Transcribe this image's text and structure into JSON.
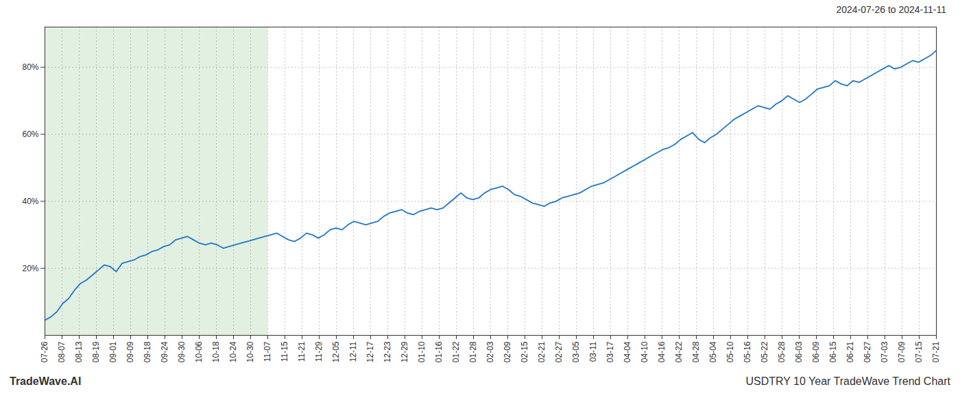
{
  "chart_data": {
    "type": "line",
    "title": "2024-07-26 to 2024-11-11",
    "annotations": [
      "TradeWave.AI",
      "USDTRY 10 Year TradeWave Trend Chart"
    ],
    "color": "#2176c7",
    "grid": true,
    "highlight": {
      "start": 0,
      "end": 13,
      "color": "#d5ead5"
    },
    "xlim": [
      0,
      52
    ],
    "xticks": [
      {
        "value": 0,
        "label": "07-26"
      },
      {
        "value": 1,
        "label": "08-07"
      },
      {
        "value": 2,
        "label": "08-13"
      },
      {
        "value": 3,
        "label": "08-19"
      },
      {
        "value": 4,
        "label": "09-01"
      },
      {
        "value": 5,
        "label": "09-09"
      },
      {
        "value": 6,
        "label": "09-18"
      },
      {
        "value": 7,
        "label": "09-24"
      },
      {
        "value": 8,
        "label": "09-30"
      },
      {
        "value": 9,
        "label": "10-06"
      },
      {
        "value": 10,
        "label": "10-18"
      },
      {
        "value": 11,
        "label": "10-24"
      },
      {
        "value": 12,
        "label": "10-30"
      },
      {
        "value": 13,
        "label": "11-07"
      },
      {
        "value": 14,
        "label": "11-15"
      },
      {
        "value": 15,
        "label": "11-21"
      },
      {
        "value": 16,
        "label": "11-29"
      },
      {
        "value": 17,
        "label": "12-05"
      },
      {
        "value": 18,
        "label": "12-11"
      },
      {
        "value": 19,
        "label": "12-17"
      },
      {
        "value": 20,
        "label": "12-23"
      },
      {
        "value": 21,
        "label": "12-29"
      },
      {
        "value": 22,
        "label": "01-10"
      },
      {
        "value": 23,
        "label": "01-16"
      },
      {
        "value": 24,
        "label": "01-22"
      },
      {
        "value": 25,
        "label": "01-28"
      },
      {
        "value": 26,
        "label": "02-03"
      },
      {
        "value": 27,
        "label": "02-09"
      },
      {
        "value": 28,
        "label": "02-15"
      },
      {
        "value": 29,
        "label": "02-21"
      },
      {
        "value": 30,
        "label": "02-27"
      },
      {
        "value": 31,
        "label": "03-05"
      },
      {
        "value": 32,
        "label": "03-11"
      },
      {
        "value": 33,
        "label": "03-17"
      },
      {
        "value": 34,
        "label": "04-04"
      },
      {
        "value": 35,
        "label": "04-10"
      },
      {
        "value": 36,
        "label": "04-16"
      },
      {
        "value": 37,
        "label": "04-22"
      },
      {
        "value": 38,
        "label": "04-28"
      },
      {
        "value": 39,
        "label": "05-04"
      },
      {
        "value": 40,
        "label": "05-10"
      },
      {
        "value": 41,
        "label": "05-16"
      },
      {
        "value": 42,
        "label": "05-22"
      },
      {
        "value": 43,
        "label": "05-28"
      },
      {
        "value": 44,
        "label": "06-03"
      },
      {
        "value": 45,
        "label": "06-09"
      },
      {
        "value": 46,
        "label": "06-15"
      },
      {
        "value": 47,
        "label": "06-21"
      },
      {
        "value": 48,
        "label": "06-27"
      },
      {
        "value": 49,
        "label": "07-03"
      },
      {
        "value": 50,
        "label": "07-09"
      },
      {
        "value": 51,
        "label": "07-15"
      },
      {
        "value": 52,
        "label": "07-21"
      }
    ],
    "ylim": [
      0,
      92
    ],
    "yticks": [
      {
        "value": 20,
        "label": "20%"
      },
      {
        "value": 40,
        "label": "40%"
      },
      {
        "value": 60,
        "label": "60%"
      },
      {
        "value": 80,
        "label": "80%"
      }
    ],
    "values": [
      4.5,
      5.5,
      7.0,
      9.5,
      11.0,
      13.5,
      15.5,
      16.5,
      18.0,
      19.5,
      21.0,
      20.5,
      19.0,
      21.5,
      22.0,
      22.5,
      23.5,
      24.0,
      25.0,
      25.5,
      26.5,
      27.0,
      28.5,
      29.0,
      29.5,
      28.5,
      27.5,
      27.0,
      27.5,
      27.0,
      26.0,
      26.5,
      27.0,
      27.5,
      28.0,
      28.5,
      29.0,
      29.5,
      30.0,
      30.5,
      29.5,
      28.5,
      28.0,
      29.0,
      30.5,
      30.0,
      29.0,
      30.0,
      31.5,
      32.0,
      31.5,
      33.0,
      34.0,
      33.5,
      33.0,
      33.5,
      34.0,
      35.5,
      36.5,
      37.0,
      37.5,
      36.5,
      36.0,
      37.0,
      37.5,
      38.0,
      37.5,
      38.0,
      39.5,
      41.0,
      42.5,
      41.0,
      40.5,
      41.0,
      42.5,
      43.5,
      44.0,
      44.5,
      43.5,
      42.0,
      41.5,
      40.5,
      39.5,
      39.0,
      38.5,
      39.5,
      40.0,
      41.0,
      41.5,
      42.0,
      42.5,
      43.5,
      44.5,
      45.0,
      45.5,
      46.5,
      47.5,
      48.5,
      49.5,
      50.5,
      51.5,
      52.5,
      53.5,
      54.5,
      55.5,
      56.0,
      57.0,
      58.5,
      59.5,
      60.5,
      58.5,
      57.5,
      59.0,
      60.0,
      61.5,
      63.0,
      64.5,
      65.5,
      66.5,
      67.5,
      68.5,
      68.0,
      67.5,
      69.0,
      70.0,
      71.5,
      70.5,
      69.5,
      70.5,
      72.0,
      73.5,
      74.0,
      74.5,
      76.0,
      75.0,
      74.5,
      76.0,
      75.5,
      76.5,
      77.5,
      78.5,
      79.5,
      80.5,
      79.5,
      80.0,
      81.0,
      82.0,
      81.5,
      82.5,
      83.5,
      85.0
    ]
  }
}
